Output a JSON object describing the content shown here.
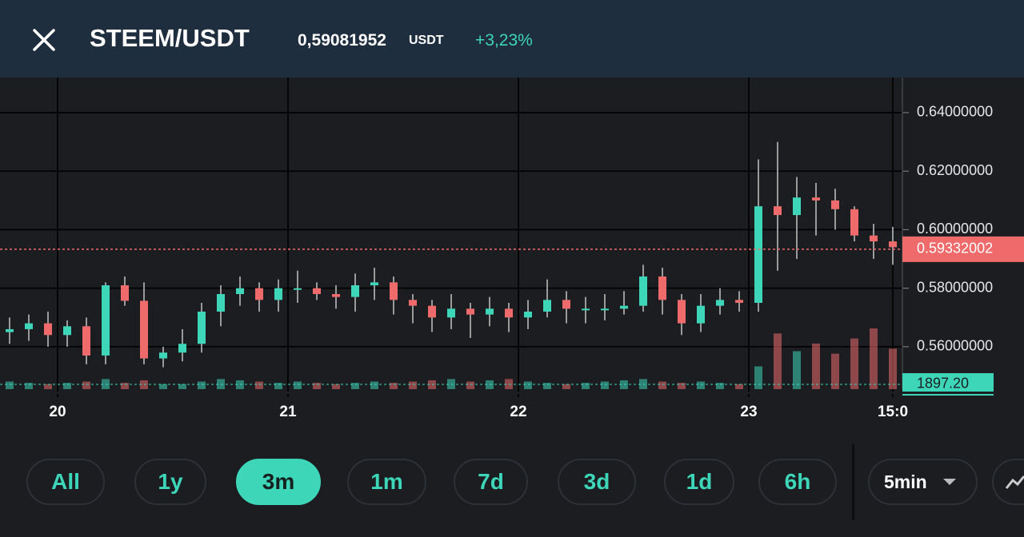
{
  "header": {
    "title": "STEEM/USDT",
    "price": "0,59081952",
    "unit": "USDT",
    "change": "+3,23%"
  },
  "chart_data": {
    "type": "candlestick",
    "x": [
      -5,
      -3,
      -1,
      1,
      3,
      5,
      7,
      9,
      11,
      13,
      15,
      17,
      19,
      21,
      23,
      25,
      27,
      29,
      31,
      33,
      35,
      37,
      39,
      41,
      43,
      45,
      47,
      49,
      51,
      53,
      55,
      57,
      59,
      61,
      63,
      65,
      67,
      69,
      71,
      73,
      75,
      77,
      79,
      81,
      83,
      85,
      87
    ],
    "open": [
      0.565,
      0.566,
      0.568,
      0.564,
      0.567,
      0.557,
      0.581,
      0.5757,
      0.556,
      0.558,
      0.561,
      0.572,
      0.578,
      0.58,
      0.576,
      0.58,
      0.58,
      0.578,
      0.577,
      0.581,
      0.582,
      0.576,
      0.574,
      0.57,
      0.573,
      0.571,
      0.573,
      0.57,
      0.572,
      0.576,
      0.573,
      0.573,
      0.573,
      0.574,
      0.584,
      0.576,
      0.568,
      0.574,
      0.576,
      0.575,
      0.608,
      0.605,
      0.611,
      0.61,
      0.607,
      0.598,
      0.596
    ],
    "high": [
      0.57,
      0.571,
      0.572,
      0.569,
      0.57,
      0.582,
      0.584,
      0.582,
      0.56,
      0.566,
      0.575,
      0.581,
      0.584,
      0.582,
      0.583,
      0.586,
      0.582,
      0.581,
      0.585,
      0.587,
      0.584,
      0.578,
      0.576,
      0.578,
      0.575,
      0.577,
      0.575,
      0.576,
      0.583,
      0.579,
      0.577,
      0.578,
      0.579,
      0.588,
      0.587,
      0.578,
      0.578,
      0.58,
      0.579,
      0.624,
      0.63,
      0.618,
      0.616,
      0.614,
      0.608,
      0.602,
      0.601
    ],
    "low": [
      0.561,
      0.562,
      0.56,
      0.56,
      0.554,
      0.554,
      0.574,
      0.554,
      0.553,
      0.555,
      0.558,
      0.567,
      0.574,
      0.572,
      0.572,
      0.575,
      0.576,
      0.573,
      0.572,
      0.576,
      0.571,
      0.568,
      0.565,
      0.566,
      0.563,
      0.567,
      0.565,
      0.566,
      0.57,
      0.568,
      0.568,
      0.569,
      0.571,
      0.572,
      0.571,
      0.564,
      0.565,
      0.571,
      0.572,
      0.572,
      0.586,
      0.59,
      0.598,
      0.6,
      0.596,
      0.59,
      0.588
    ],
    "close": [
      0.566,
      0.568,
      0.564,
      0.567,
      0.557,
      0.581,
      0.5757,
      0.556,
      0.558,
      0.561,
      0.572,
      0.578,
      0.58,
      0.576,
      0.58,
      0.58,
      0.578,
      0.577,
      0.581,
      0.582,
      0.576,
      0.574,
      0.57,
      0.573,
      0.571,
      0.573,
      0.57,
      0.572,
      0.576,
      0.573,
      0.573,
      0.573,
      0.574,
      0.584,
      0.576,
      0.568,
      0.574,
      0.576,
      0.575,
      0.608,
      0.605,
      0.611,
      0.61,
      0.607,
      0.598,
      0.596,
      0.594
    ],
    "volume": [
      3000,
      2500,
      2000,
      2500,
      3000,
      4000,
      2500,
      3500,
      2000,
      2000,
      3000,
      4000,
      3500,
      3000,
      2500,
      3000,
      2500,
      2000,
      2500,
      3000,
      2500,
      3000,
      3500,
      4000,
      3000,
      3500,
      4000,
      3000,
      2500,
      2000,
      2500,
      3000,
      3500,
      4000,
      3000,
      2500,
      3000,
      2500,
      2000,
      9000,
      22000,
      15000,
      18000,
      14000,
      20000,
      24000,
      16000
    ],
    "up_color": "#3dd6b9",
    "down_color": "#ef6b6b",
    "xlim": [
      -6,
      88
    ],
    "xticks": [
      {
        "value": 0,
        "label": "20"
      },
      {
        "value": 24,
        "label": "21"
      },
      {
        "value": 48,
        "label": "22"
      },
      {
        "value": 72,
        "label": "23"
      },
      {
        "value": 87,
        "label": "15:0"
      }
    ],
    "ylim": [
      0.5455,
      0.652
    ],
    "yticks": [
      {
        "value": 0.56,
        "label": "0.56000000"
      },
      {
        "value": 0.58,
        "label": "0.58000000"
      },
      {
        "value": 0.6,
        "label": "0.60000000"
      },
      {
        "value": 0.62,
        "label": "0.62000000"
      },
      {
        "value": 0.64,
        "label": "0.64000000"
      }
    ],
    "y2lim": [
      0,
      123000
    ],
    "last_price": 0.59332002,
    "last_volume": {
      "value": 1897.2,
      "label": "1897.20"
    },
    "grid": true
  },
  "controls": {
    "ranges": [
      "All",
      "1y",
      "3m",
      "1m",
      "7d",
      "3d",
      "1d",
      "6h"
    ],
    "selected": 2,
    "interval": "5min"
  }
}
